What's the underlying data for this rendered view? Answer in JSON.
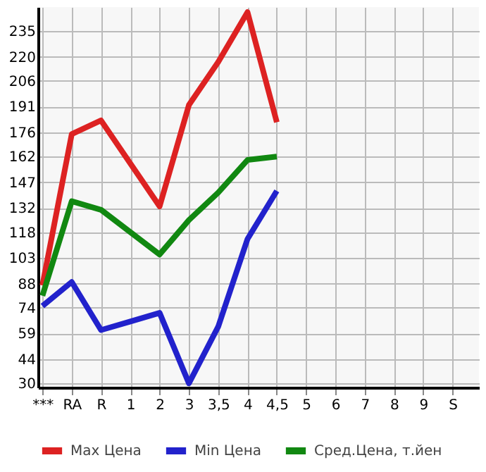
{
  "chart_data": {
    "type": "line",
    "categories": [
      "***",
      "RA",
      "R",
      "1",
      "2",
      "3",
      "3,5",
      "4",
      "4,5",
      "5",
      "6",
      "7",
      "8",
      "9",
      "S"
    ],
    "series": [
      {
        "name": "Max Цена",
        "color": "#dd2222",
        "values": [
          87,
          175,
          183,
          158,
          133,
          192,
          217,
          246,
          182,
          null,
          null,
          null,
          null,
          null,
          null
        ]
      },
      {
        "name": "Min Цена",
        "color": "#2222cc",
        "values": [
          75,
          89,
          61,
          66,
          71,
          30,
          63,
          114,
          142,
          null,
          null,
          null,
          null,
          null,
          null
        ]
      },
      {
        "name": "Сред.Цена, т.йен",
        "color": "#118811",
        "values": [
          81,
          136,
          131,
          118,
          105,
          125,
          141,
          160,
          162,
          null,
          null,
          null,
          null,
          null,
          null
        ]
      }
    ],
    "ylim": [
      27.6,
      249
    ],
    "yticks": [
      30,
      44,
      59,
      74,
      88,
      103,
      118,
      132,
      147,
      162,
      176,
      191,
      206,
      220,
      235
    ],
    "grid": true,
    "legend": "bottom",
    "marker": "none",
    "line_style": "solid"
  }
}
